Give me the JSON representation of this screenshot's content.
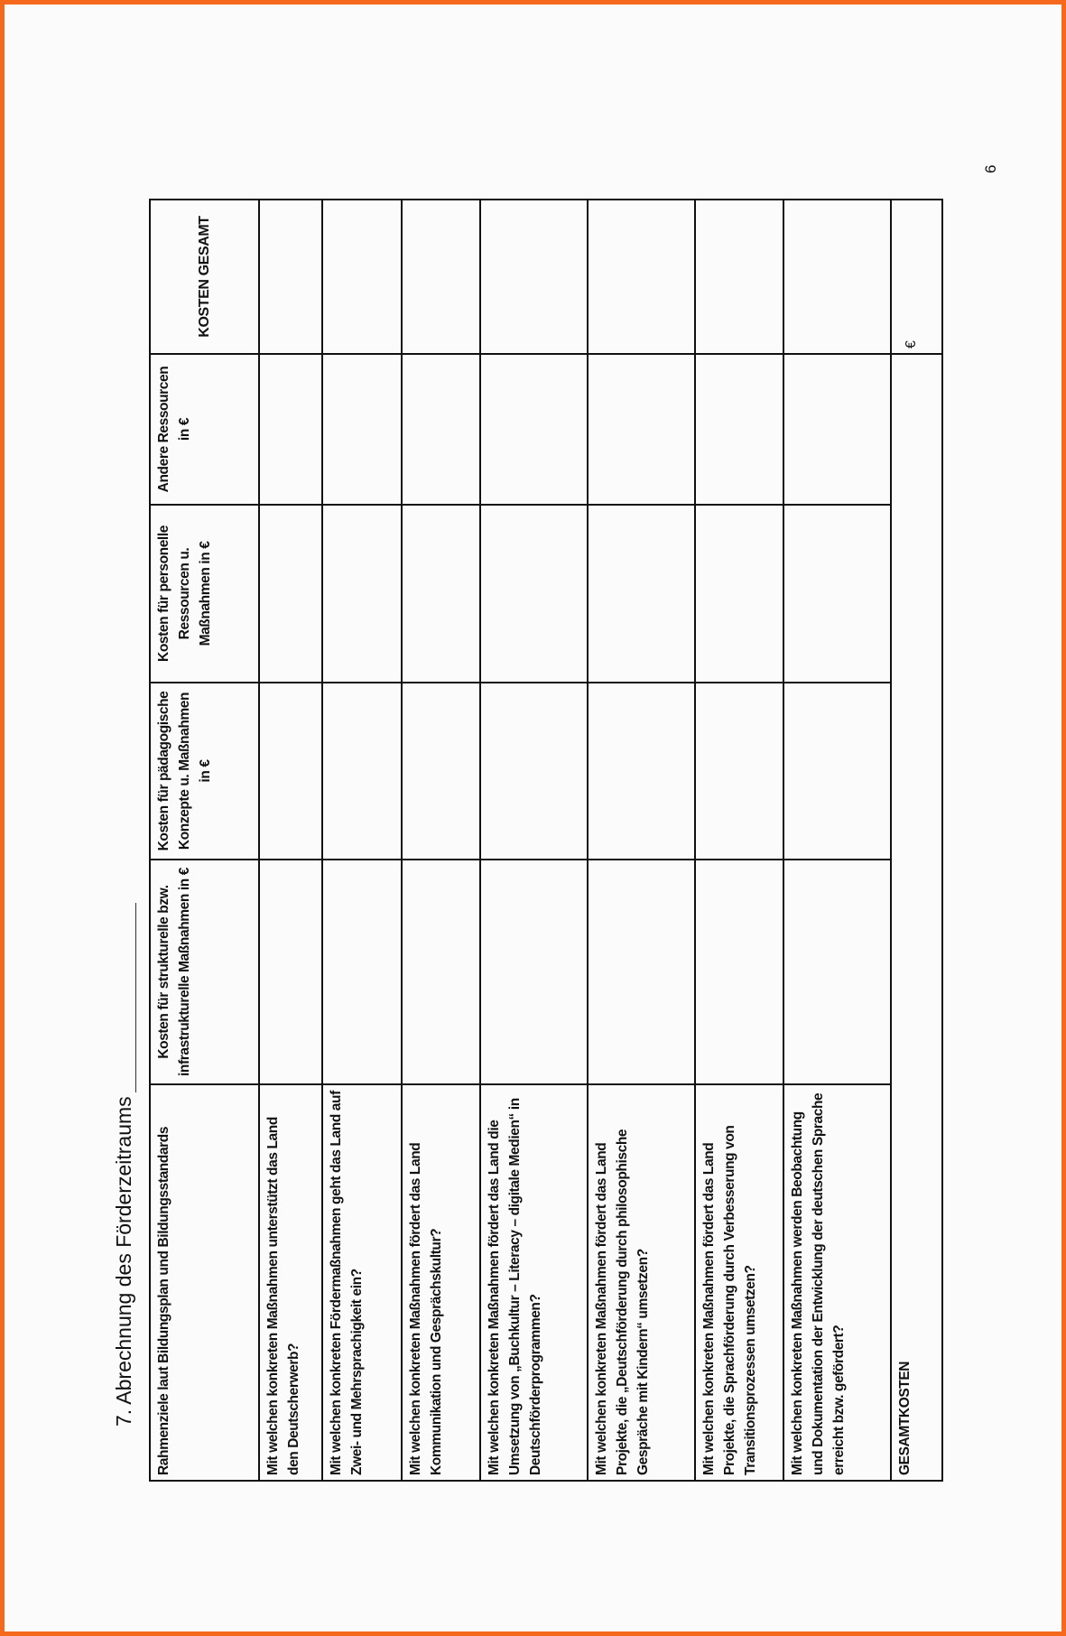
{
  "page": {
    "title": "7.  Abrechnung des Förderzeitraums",
    "page_number": "6"
  },
  "table": {
    "headers": [
      "Rahmenziele laut Bildungsplan und Bildungsstandards",
      "Kosten für strukturelle bzw. infrastrukturelle Maßnahmen in €",
      "Kosten für pädagogische Konzepte u. Maßnahmen in €",
      "Kosten für personelle Ressourcen u. Maßnahmen in €",
      "Andere Ressourcen in €",
      "KOSTEN GESAMT"
    ],
    "rows": [
      "Mit welchen konkreten Maßnahmen unterstützt das Land den Deutscherwerb?",
      "Mit welchen konkreten Fördermaßnahmen geht das Land auf Zwei- und Mehrsprachigkeit ein?",
      "Mit welchen konkreten Maßnahmen fördert das Land Kommunikation und Gesprächskultur?",
      "Mit welchen konkreten Maßnahmen fördert das Land die Umsetzung von „Buchkultur – Literacy – digitale Medien“ in Deutschförderprogrammen?",
      "Mit welchen konkreten Maßnahmen fördert das Land Projekte, die „Deutschförderung durch philosophische Gespräche mit Kindern“ umsetzen?",
      "Mit welchen konkreten Maßnahmen fördert das Land Projekte, die Sprachförderung durch Verbesserung von Transitionsprozessen umsetzen?",
      "Mit welchen konkreten Maßnahmen werden Beobachtung und Dokumentation der Entwicklung der deutschen Sprache erreicht bzw. gefördert?"
    ],
    "total_label": "GESAMTKOSTEN",
    "total_currency": "€"
  },
  "colors": {
    "frame": "#f4691c",
    "background": "#fbfbfb"
  }
}
